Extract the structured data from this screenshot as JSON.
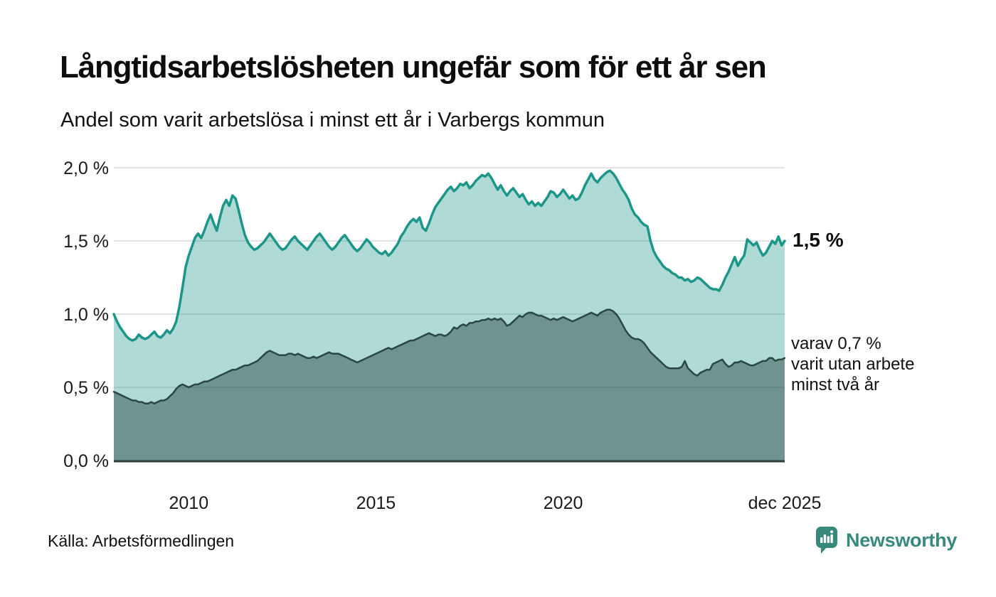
{
  "header": {
    "title": "Långtidsarbetslösheten ungefär som för ett år sen",
    "subtitle": "Andel som varit arbetslösa i minst ett år i Varbergs kommun"
  },
  "annotations": {
    "latest_value": "1,5 %",
    "two_year_lines": [
      "varav 0,7 %",
      "varit utan arbete",
      "minst två år"
    ]
  },
  "footer": {
    "source": "Källa: Arbetsförmedlingen",
    "brand": "Newsworthy"
  },
  "colors": {
    "brand_teal": "#36897b",
    "upper_line": "#1b9688",
    "upper_fill": "rgba(27,150,136,0.35)",
    "lower_line": "#2a4741",
    "lower_fill": "rgba(30,58,53,0.44)",
    "grid": "#d9d9d9",
    "baseline": "#2e3e3a",
    "axis_text": "#1a1a1a"
  },
  "chart_data": {
    "type": "area",
    "title": "Andel som varit arbetslösa i minst ett år i Varbergs kommun",
    "unit": "%",
    "interval": "monthly",
    "x_start": "2008-01",
    "x_end": "2025-12",
    "ylim": [
      0,
      2.0
    ],
    "grid": true,
    "legend": "direct-labels",
    "yticks": [
      {
        "label": "2,0 %",
        "value": 2.0
      },
      {
        "label": "1,5 %",
        "value": 1.5
      },
      {
        "label": "1,0 %",
        "value": 1.0
      },
      {
        "label": "0,5 %",
        "value": 0.5
      },
      {
        "label": "0,0 %",
        "value": 0.0
      }
    ],
    "xticks": [
      {
        "label": "2010",
        "month": 24
      },
      {
        "label": "2015",
        "month": 84
      },
      {
        "label": "2020",
        "month": 144
      },
      {
        "label": "dec 2025",
        "month": 215
      }
    ],
    "series": [
      {
        "name": "arbetslösa minst ett år",
        "latest_label": "1,5 %",
        "line_color": "#1b9688",
        "fill_color": "rgba(27,150,136,0.35)",
        "line_width": 3.5,
        "values": [
          1.0,
          0.95,
          0.91,
          0.88,
          0.85,
          0.83,
          0.82,
          0.83,
          0.86,
          0.84,
          0.83,
          0.84,
          0.86,
          0.88,
          0.85,
          0.84,
          0.86,
          0.89,
          0.87,
          0.9,
          0.95,
          1.05,
          1.18,
          1.32,
          1.4,
          1.46,
          1.52,
          1.55,
          1.52,
          1.57,
          1.63,
          1.68,
          1.62,
          1.57,
          1.66,
          1.74,
          1.78,
          1.74,
          1.81,
          1.79,
          1.71,
          1.62,
          1.54,
          1.49,
          1.46,
          1.44,
          1.45,
          1.47,
          1.49,
          1.52,
          1.55,
          1.52,
          1.49,
          1.46,
          1.44,
          1.45,
          1.48,
          1.51,
          1.53,
          1.5,
          1.48,
          1.46,
          1.44,
          1.47,
          1.5,
          1.53,
          1.55,
          1.52,
          1.49,
          1.46,
          1.44,
          1.46,
          1.49,
          1.52,
          1.54,
          1.51,
          1.48,
          1.45,
          1.43,
          1.45,
          1.48,
          1.51,
          1.49,
          1.46,
          1.44,
          1.42,
          1.41,
          1.43,
          1.4,
          1.42,
          1.45,
          1.48,
          1.53,
          1.56,
          1.6,
          1.63,
          1.65,
          1.63,
          1.66,
          1.59,
          1.57,
          1.62,
          1.68,
          1.73,
          1.76,
          1.79,
          1.82,
          1.85,
          1.87,
          1.84,
          1.86,
          1.89,
          1.88,
          1.9,
          1.86,
          1.88,
          1.91,
          1.93,
          1.95,
          1.94,
          1.96,
          1.93,
          1.89,
          1.85,
          1.88,
          1.84,
          1.81,
          1.84,
          1.86,
          1.83,
          1.8,
          1.82,
          1.78,
          1.75,
          1.77,
          1.74,
          1.76,
          1.74,
          1.77,
          1.8,
          1.84,
          1.83,
          1.8,
          1.82,
          1.85,
          1.82,
          1.79,
          1.81,
          1.78,
          1.79,
          1.83,
          1.88,
          1.92,
          1.96,
          1.92,
          1.9,
          1.93,
          1.95,
          1.97,
          1.98,
          1.96,
          1.93,
          1.89,
          1.85,
          1.82,
          1.78,
          1.72,
          1.68,
          1.66,
          1.63,
          1.61,
          1.6,
          1.5,
          1.43,
          1.39,
          1.36,
          1.33,
          1.31,
          1.3,
          1.28,
          1.27,
          1.25,
          1.25,
          1.23,
          1.24,
          1.22,
          1.23,
          1.25,
          1.24,
          1.22,
          1.2,
          1.18,
          1.17,
          1.17,
          1.16,
          1.2,
          1.25,
          1.29,
          1.34,
          1.39,
          1.33,
          1.37,
          1.4,
          1.51,
          1.49,
          1.47,
          1.49,
          1.44,
          1.4,
          1.42,
          1.46,
          1.5,
          1.48,
          1.53,
          1.47,
          1.5
        ]
      },
      {
        "name": "varav arbetslösa minst två år",
        "latest_label": "varav 0,7 % varit utan arbete minst två år",
        "line_color": "#2a4741",
        "fill_color": "rgba(30,58,53,0.44)",
        "line_width": 2.5,
        "values": [
          0.47,
          0.46,
          0.45,
          0.44,
          0.43,
          0.42,
          0.41,
          0.41,
          0.4,
          0.4,
          0.39,
          0.39,
          0.4,
          0.39,
          0.4,
          0.41,
          0.41,
          0.42,
          0.44,
          0.46,
          0.49,
          0.51,
          0.52,
          0.51,
          0.5,
          0.51,
          0.52,
          0.52,
          0.53,
          0.54,
          0.54,
          0.55,
          0.56,
          0.57,
          0.58,
          0.59,
          0.6,
          0.61,
          0.62,
          0.62,
          0.63,
          0.64,
          0.65,
          0.65,
          0.66,
          0.67,
          0.68,
          0.7,
          0.72,
          0.74,
          0.75,
          0.74,
          0.73,
          0.72,
          0.72,
          0.72,
          0.73,
          0.73,
          0.72,
          0.73,
          0.72,
          0.71,
          0.7,
          0.7,
          0.71,
          0.7,
          0.71,
          0.72,
          0.73,
          0.74,
          0.73,
          0.73,
          0.73,
          0.72,
          0.71,
          0.7,
          0.69,
          0.68,
          0.67,
          0.68,
          0.69,
          0.7,
          0.71,
          0.72,
          0.73,
          0.74,
          0.75,
          0.76,
          0.77,
          0.76,
          0.77,
          0.78,
          0.79,
          0.8,
          0.81,
          0.82,
          0.82,
          0.83,
          0.84,
          0.85,
          0.86,
          0.87,
          0.86,
          0.85,
          0.86,
          0.86,
          0.85,
          0.86,
          0.88,
          0.91,
          0.9,
          0.92,
          0.93,
          0.92,
          0.94,
          0.94,
          0.95,
          0.95,
          0.96,
          0.96,
          0.97,
          0.96,
          0.97,
          0.96,
          0.97,
          0.95,
          0.92,
          0.93,
          0.95,
          0.97,
          0.99,
          0.98,
          1.0,
          1.01,
          1.01,
          1.0,
          0.99,
          0.99,
          0.98,
          0.97,
          0.96,
          0.97,
          0.96,
          0.97,
          0.98,
          0.97,
          0.96,
          0.95,
          0.96,
          0.97,
          0.98,
          0.99,
          1.0,
          1.01,
          1.0,
          0.99,
          1.01,
          1.02,
          1.03,
          1.03,
          1.02,
          1.0,
          0.97,
          0.93,
          0.89,
          0.86,
          0.84,
          0.83,
          0.83,
          0.82,
          0.8,
          0.77,
          0.74,
          0.72,
          0.7,
          0.68,
          0.66,
          0.64,
          0.63,
          0.63,
          0.63,
          0.63,
          0.64,
          0.68,
          0.63,
          0.61,
          0.59,
          0.58,
          0.6,
          0.61,
          0.62,
          0.62,
          0.66,
          0.67,
          0.68,
          0.69,
          0.66,
          0.64,
          0.65,
          0.67,
          0.67,
          0.68,
          0.67,
          0.66,
          0.65,
          0.65,
          0.66,
          0.67,
          0.68,
          0.68,
          0.7,
          0.7,
          0.68,
          0.69,
          0.69,
          0.7
        ]
      }
    ]
  }
}
